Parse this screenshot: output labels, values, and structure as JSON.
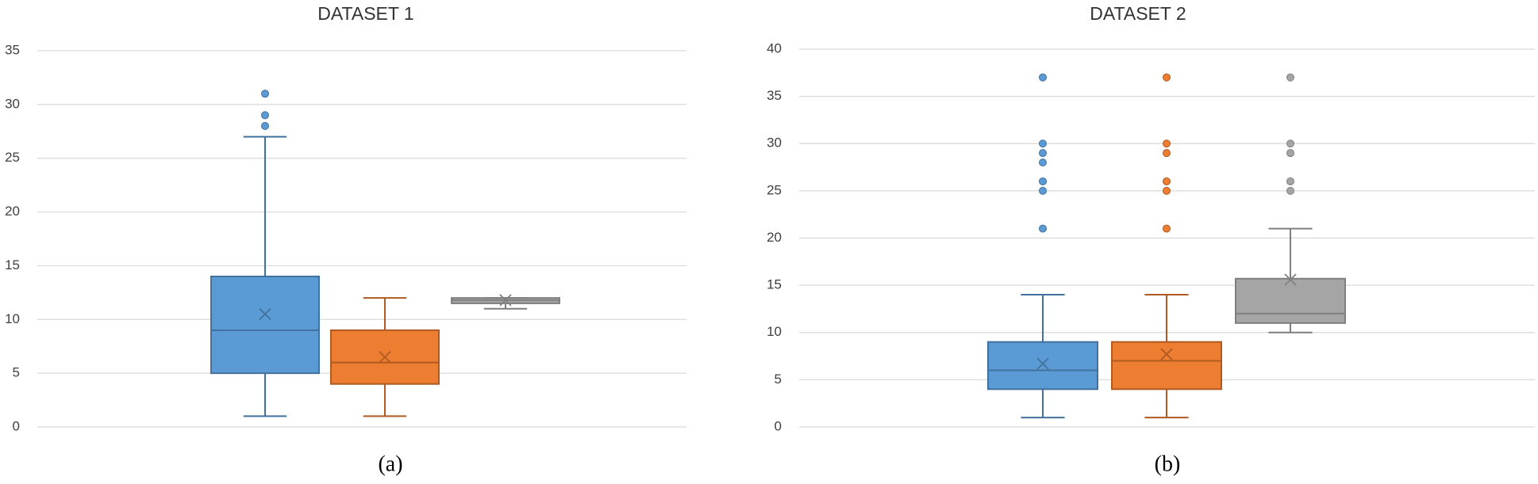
{
  "chart_data": [
    {
      "type": "box",
      "title": "DATASET 1",
      "caption": "(a)",
      "ylim": [
        0,
        35
      ],
      "yticks": [
        0,
        5,
        10,
        15,
        20,
        25,
        30,
        35
      ],
      "grid": true,
      "series": [
        {
          "color": "#5b9bd5",
          "line_color": "#41719c",
          "min": 1,
          "q1": 5,
          "median": 9,
          "q3": 14,
          "max": 27,
          "mean": 10.5,
          "outliers": [
            28,
            29,
            31
          ]
        },
        {
          "color": "#ed7d31",
          "line_color": "#ae5a21",
          "min": 1,
          "q1": 4,
          "median": 6,
          "q3": 9,
          "max": 12,
          "mean": 6.5,
          "outliers": []
        },
        {
          "color": "#a5a5a5",
          "line_color": "#7f7f7f",
          "min": 11,
          "q1": 11.5,
          "median": 11.8,
          "q3": 12,
          "max": 12,
          "mean": 11.8,
          "outliers": []
        }
      ]
    },
    {
      "type": "box",
      "title": "DATASET 2",
      "caption": "(b)",
      "ylim": [
        0,
        40
      ],
      "yticks": [
        0,
        5,
        10,
        15,
        20,
        25,
        30,
        35,
        40
      ],
      "grid": true,
      "series": [
        {
          "color": "#5b9bd5",
          "line_color": "#41719c",
          "min": 1,
          "q1": 4,
          "median": 6,
          "q3": 9,
          "max": 14,
          "mean": 6.7,
          "outliers": [
            21,
            25,
            26,
            28,
            29,
            30,
            37
          ]
        },
        {
          "color": "#ed7d31",
          "line_color": "#ae5a21",
          "min": 1,
          "q1": 4,
          "median": 7,
          "q3": 9,
          "max": 14,
          "mean": 7.7,
          "outliers": [
            21,
            25,
            26,
            29,
            30,
            37
          ]
        },
        {
          "color": "#a5a5a5",
          "line_color": "#7f7f7f",
          "min": 10,
          "q1": 11,
          "median": 12,
          "q3": 15.7,
          "max": 21,
          "mean": 15.6,
          "outliers": [
            25,
            26,
            29,
            30,
            37
          ]
        }
      ]
    }
  ]
}
